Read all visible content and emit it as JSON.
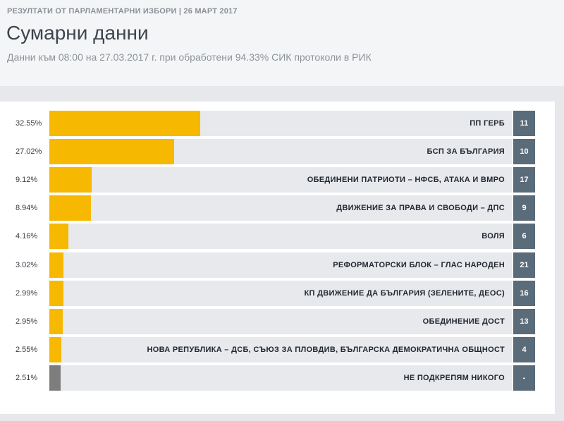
{
  "header": {
    "kicker": "РЕЗУЛТАТИ ОТ ПАРЛАМЕНТАРНИ ИЗБОРИ | 26 МАРТ 2017",
    "title": "Сумарни данни",
    "subtitle": "Данни към 08:00 на 27.03.2017 г. при обработени 94.33% СИК протоколи в РИК"
  },
  "colors": {
    "bar": "#f6b800",
    "bar_none": "#7d7d7d",
    "track": "#e7e9ec",
    "number_box": "#5a6b7a"
  },
  "chart_data": {
    "type": "bar",
    "orientation": "horizontal",
    "title": "Сумарни данни",
    "xlim": [
      0,
      100
    ],
    "categories": [
      "ПП ГЕРБ",
      "БСП ЗА БЪЛГАРИЯ",
      "ОБЕДИНЕНИ ПАТРИОТИ – НФСБ, АТАКА И ВМРО",
      "ДВИЖЕНИЕ ЗА ПРАВА И СВОБОДИ – ДПС",
      "ВОЛЯ",
      "РЕФОРМАТОРСКИ БЛОК – ГЛАС НАРОДЕН",
      "КП ДВИЖЕНИЕ ДА БЪЛГАРИЯ (ЗЕЛЕНИТЕ, ДЕОС)",
      "ОБЕДИНЕНИЕ ДОСТ",
      "НОВА РЕПУБЛИКА – ДСБ, СЪЮЗ ЗА ПЛОВДИВ, БЪЛГАРСКА ДЕМОКРАТИЧНА ОБЩНОСТ",
      "НЕ ПОДКРЕПЯМ НИКОГО"
    ],
    "values": [
      32.55,
      27.02,
      9.12,
      8.94,
      4.16,
      3.02,
      2.99,
      2.95,
      2.55,
      2.51
    ],
    "value_labels": [
      "32.55%",
      "27.02%",
      "9.12%",
      "8.94%",
      "4.16%",
      "3.02%",
      "2.99%",
      "2.95%",
      "2.55%",
      "2.51%"
    ],
    "ballot_numbers": [
      "11",
      "10",
      "17",
      "9",
      "6",
      "21",
      "16",
      "13",
      "4",
      "-"
    ]
  }
}
